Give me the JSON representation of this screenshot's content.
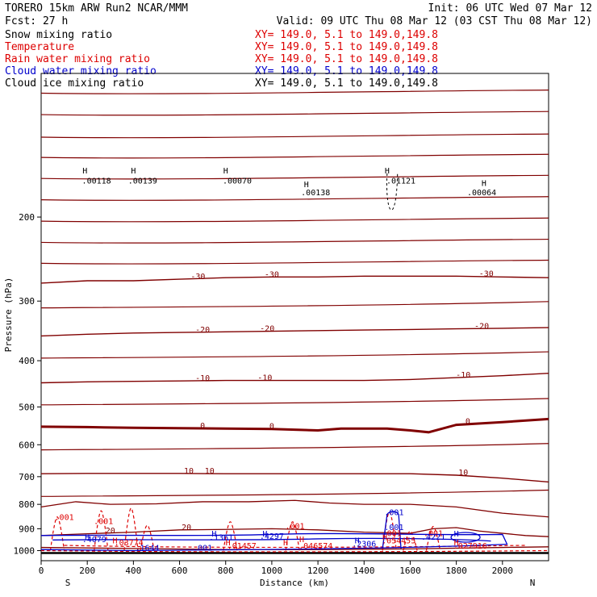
{
  "header": {
    "left1": "TORERO  15km ARW   Run2    NCAR/MMM",
    "left2": "Fcst:    27 h",
    "right1": "Init: 06 UTC Wed 07 Mar 12",
    "right2": "Valid: 09 UTC Thu 08 Mar 12 (03 CST Thu 08 Mar 12)"
  },
  "legend": [
    {
      "label": "Snow mixing ratio",
      "color": "#000000",
      "xy": "XY= 149.0,   5.1 to 149.0,149.8"
    },
    {
      "label": "Temperature",
      "color": "#dd0000",
      "xy": "XY= 149.0,   5.1 to 149.0,149.8"
    },
    {
      "label": "Rain water mixing ratio",
      "color": "#dd0000",
      "xy": "XY= 149.0,   5.1 to 149.0,149.8"
    },
    {
      "label": "Cloud water mixing ratio",
      "color": "#0000cc",
      "xy": "XY= 149.0,   5.1 to 149.0,149.8"
    },
    {
      "label": "Cloud ice mixing ratio",
      "color": "#000000",
      "xy": "XY= 149.0,   5.1 to 149.0,149.8"
    }
  ],
  "chart_data": {
    "type": "cross-section",
    "xlabel": "Distance (km)",
    "ylabel": "Pressure (hPa)",
    "xlim": [
      0,
      2200
    ],
    "ylim": [
      1050,
      100
    ],
    "y_scale": "log",
    "x_ticks": [
      "0",
      "200",
      "400",
      "600",
      "800",
      "1000",
      "1200",
      "1400",
      "1600",
      "1800",
      "2000"
    ],
    "x_tick_values": [
      0,
      200,
      400,
      600,
      800,
      1000,
      1200,
      1400,
      1600,
      1800,
      2000
    ],
    "y_ticks": [
      "200",
      "300",
      "400",
      "500",
      "600",
      "700",
      "800",
      "900",
      "1000"
    ],
    "y_tick_values": [
      200,
      300,
      400,
      500,
      600,
      700,
      800,
      900,
      1000
    ],
    "x_end_labels": {
      "left": "S",
      "right": "N"
    },
    "colors": {
      "temperature": "#800000",
      "rain": "#dd0000",
      "cloud_water": "#0000cc",
      "snow": "#000000"
    },
    "temperature_contours": [
      {
        "value": -30,
        "points": [
          [
            0,
            275
          ],
          [
            200,
            272
          ],
          [
            400,
            272
          ],
          [
            600,
            270
          ],
          [
            800,
            268
          ],
          [
            1000,
            267
          ],
          [
            1200,
            267
          ],
          [
            1400,
            266
          ],
          [
            1600,
            266
          ],
          [
            1800,
            266
          ],
          [
            2000,
            267
          ],
          [
            2200,
            268
          ]
        ]
      },
      {
        "value": -20,
        "points": [
          [
            0,
            355
          ],
          [
            200,
            352
          ],
          [
            400,
            350
          ],
          [
            600,
            349
          ],
          [
            800,
            348
          ],
          [
            1000,
            347
          ],
          [
            1200,
            346
          ],
          [
            1400,
            345
          ],
          [
            1600,
            344
          ],
          [
            1800,
            343
          ],
          [
            2000,
            342
          ],
          [
            2200,
            341
          ]
        ]
      },
      {
        "value": -10,
        "points": [
          [
            0,
            445
          ],
          [
            200,
            443
          ],
          [
            400,
            442
          ],
          [
            600,
            441
          ],
          [
            800,
            440
          ],
          [
            1000,
            440
          ],
          [
            1200,
            440
          ],
          [
            1400,
            440
          ],
          [
            1600,
            438
          ],
          [
            1800,
            434
          ],
          [
            2000,
            430
          ],
          [
            2200,
            425
          ]
        ]
      },
      {
        "value": 0,
        "points": [
          [
            0,
            550
          ],
          [
            200,
            551
          ],
          [
            400,
            553
          ],
          [
            600,
            554
          ],
          [
            800,
            555
          ],
          [
            1000,
            556
          ],
          [
            1200,
            560
          ],
          [
            1300,
            555
          ],
          [
            1500,
            555
          ],
          [
            1600,
            560
          ],
          [
            1680,
            565
          ],
          [
            1800,
            545
          ],
          [
            2000,
            538
          ],
          [
            2200,
            530
          ]
        ]
      },
      {
        "value": 10,
        "points": [
          [
            0,
            690
          ],
          [
            200,
            689
          ],
          [
            400,
            689
          ],
          [
            600,
            689
          ],
          [
            800,
            690
          ],
          [
            1000,
            690
          ],
          [
            1200,
            690
          ],
          [
            1400,
            690
          ],
          [
            1600,
            690
          ],
          [
            1800,
            695
          ],
          [
            2000,
            705
          ],
          [
            2200,
            718
          ]
        ]
      }
    ],
    "temperature_labels": [
      {
        "text": "-30",
        "x": 680,
        "p": 270
      },
      {
        "text": "-30",
        "x": 1000,
        "p": 267
      },
      {
        "text": "-30",
        "x": 1930,
        "p": 266
      },
      {
        "text": "-20",
        "x": 700,
        "p": 349
      },
      {
        "text": "-20",
        "x": 980,
        "p": 347
      },
      {
        "text": "-20",
        "x": 1910,
        "p": 343
      },
      {
        "text": "-10",
        "x": 700,
        "p": 441
      },
      {
        "text": "-10",
        "x": 970,
        "p": 440
      },
      {
        "text": "-10",
        "x": 1830,
        "p": 434
      },
      {
        "text": "0",
        "x": 700,
        "p": 554
      },
      {
        "text": "0",
        "x": 1000,
        "p": 556
      },
      {
        "text": "0",
        "x": 1850,
        "p": 543
      },
      {
        "text": "10",
        "x": 640,
        "p": 689
      },
      {
        "text": "10",
        "x": 730,
        "p": 689
      },
      {
        "text": "10",
        "x": 1830,
        "p": 695
      },
      {
        "text": "20",
        "x": 300,
        "p": 919
      },
      {
        "text": "20",
        "x": 630,
        "p": 905
      }
    ],
    "snow_labels": [
      {
        "text": ".00118",
        "x": 240,
        "p": 170
      },
      {
        "text": ".00139",
        "x": 440,
        "p": 170
      },
      {
        "text": ".00070",
        "x": 850,
        "p": 170
      },
      {
        "text": ".00138",
        "x": 1190,
        "p": 180
      },
      {
        "text": ".01121",
        "x": 1560,
        "p": 170
      },
      {
        "text": ".00064",
        "x": 1910,
        "p": 180
      }
    ],
    "rain_labels": [
      {
        "text": ".001",
        "x": 100,
        "p": 862
      },
      {
        "text": ".001",
        "x": 270,
        "p": 880
      },
      {
        "text": ".001",
        "x": 1100,
        "p": 900
      },
      {
        "text": ".001",
        "x": 1520,
        "p": 932
      },
      {
        "text": ".001",
        "x": 1700,
        "p": 932
      },
      {
        "text": ".03774",
        "x": 380,
        "p": 975
      },
      {
        "text": ".01457",
        "x": 870,
        "p": 990
      },
      {
        "text": ".046574",
        "x": 1190,
        "p": 990
      },
      {
        "text": ".054455",
        "x": 1550,
        "p": 965
      },
      {
        "text": ".027916",
        "x": 1860,
        "p": 990
      }
    ],
    "cloud_labels": [
      {
        "text": ".001",
        "x": 1530,
        "p": 842
      },
      {
        "text": ".001",
        "x": 1530,
        "p": 905
      },
      {
        "text": ".4079",
        "x": 230,
        "p": 960
      },
      {
        "text": ".1644",
        "x": 460,
        "p": 1000
      },
      {
        "text": ".001",
        "x": 700,
        "p": 1000
      },
      {
        "text": ".1361",
        "x": 780,
        "p": 950
      },
      {
        "text": ".4297",
        "x": 1000,
        "p": 945
      },
      {
        "text": ".2306",
        "x": 1400,
        "p": 980
      },
      {
        "text": ".4221",
        "x": 1700,
        "p": 948
      }
    ],
    "h_markers": [
      {
        "x": 190,
        "p": 162,
        "c": "snow"
      },
      {
        "x": 400,
        "p": 162,
        "c": "snow"
      },
      {
        "x": 800,
        "p": 162,
        "c": "snow"
      },
      {
        "x": 1150,
        "p": 173,
        "c": "snow"
      },
      {
        "x": 1500,
        "p": 162,
        "c": "snow"
      },
      {
        "x": 1920,
        "p": 172,
        "c": "snow"
      },
      {
        "x": 200,
        "p": 950,
        "c": "cloud"
      },
      {
        "x": 750,
        "p": 935,
        "c": "cloud"
      },
      {
        "x": 970,
        "p": 935,
        "c": "cloud"
      },
      {
        "x": 1370,
        "p": 965,
        "c": "cloud"
      },
      {
        "x": 1800,
        "p": 935,
        "c": "cloud"
      },
      {
        "x": 320,
        "p": 965,
        "c": "rain"
      },
      {
        "x": 810,
        "p": 975,
        "c": "rain"
      },
      {
        "x": 1060,
        "p": 975,
        "c": "rain"
      },
      {
        "x": 1490,
        "p": 950,
        "c": "rain"
      },
      {
        "x": 1800,
        "p": 975,
        "c": "rain"
      },
      {
        "x": 1130,
        "p": 960,
        "c": "rain"
      }
    ]
  }
}
